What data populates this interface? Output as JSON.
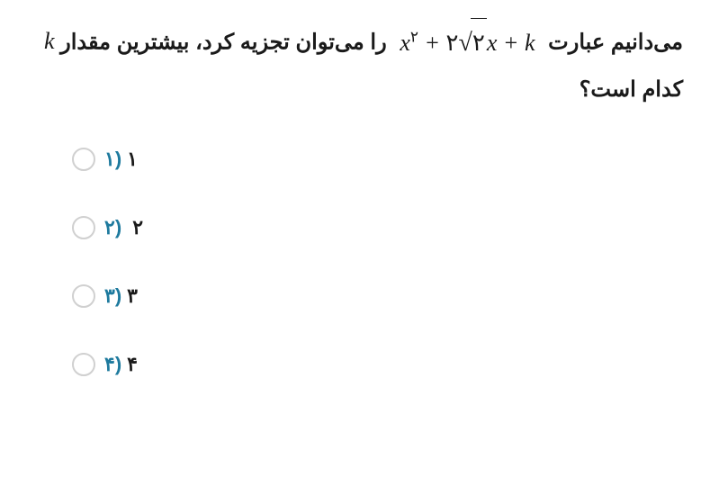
{
  "question": {
    "part1": "می‌دانیم عبارت",
    "part2": "را می‌توان تجزیه کرد، بیشترین مقدار",
    "part3": "کدام است؟",
    "math_var_k": "k",
    "math_expr": {
      "x2_base": "x",
      "x2_exp": "۲",
      "plus1": " + ",
      "coef2": "۲",
      "sqrt_radicand": "۲",
      "x_term": "x",
      "plus2": " + ",
      "k_term": "k"
    }
  },
  "options": [
    {
      "num": "۱",
      "paren": "(",
      "value": "۱"
    },
    {
      "num": "۲",
      "paren": "(",
      "value": "۲"
    },
    {
      "num": "۳",
      "paren": "(",
      "value": "۳"
    },
    {
      "num": "۴",
      "paren": "(",
      "value": "۴"
    }
  ],
  "colors": {
    "text": "#1a1a1a",
    "accent": "#1e7a9e",
    "radio_border": "#d0d0d0",
    "background": "#ffffff"
  },
  "fonts": {
    "body": "Tahoma",
    "math": "Times New Roman",
    "question_size": 24,
    "option_size": 22
  }
}
